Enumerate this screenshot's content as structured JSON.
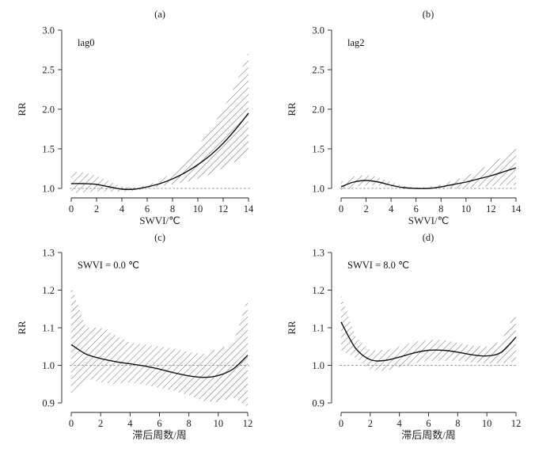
{
  "chart_data": [
    {
      "panel": "(a)",
      "type": "line",
      "annotation": "lag0",
      "xlabel": "SWVI/℃",
      "ylabel": "RR",
      "xlim": [
        0,
        14
      ],
      "ylim": [
        1.0,
        3.0
      ],
      "xticks": [
        "0",
        "2",
        "4",
        "6",
        "8",
        "10",
        "12",
        "14"
      ],
      "yticks": [
        "1.0",
        "1.5",
        "2.0",
        "2.5",
        "3.0"
      ],
      "reference_line": 1.0,
      "series": [
        {
          "x": [
            0,
            1,
            2,
            3,
            4,
            5,
            6,
            7,
            8,
            9,
            10,
            11,
            12,
            13,
            14
          ],
          "y": [
            1.06,
            1.06,
            1.05,
            1.02,
            0.99,
            0.99,
            1.02,
            1.06,
            1.12,
            1.2,
            1.3,
            1.42,
            1.57,
            1.75,
            1.95
          ],
          "lower": [
            0.94,
            0.95,
            0.96,
            0.96,
            0.96,
            0.97,
            1.0,
            1.03,
            1.05,
            1.08,
            1.12,
            1.18,
            1.26,
            1.34,
            1.44
          ],
          "upper": [
            1.21,
            1.2,
            1.16,
            1.09,
            1.02,
            1.01,
            1.04,
            1.1,
            1.2,
            1.34,
            1.53,
            1.75,
            2.0,
            2.32,
            2.72
          ]
        }
      ]
    },
    {
      "panel": "(b)",
      "type": "line",
      "annotation": "lag2",
      "xlabel": "SWVI/℃",
      "ylabel": "RR",
      "xlim": [
        0,
        14
      ],
      "ylim": [
        1.0,
        3.0
      ],
      "xticks": [
        "0",
        "2",
        "4",
        "6",
        "8",
        "10",
        "12",
        "14"
      ],
      "yticks": [
        "1.0",
        "1.5",
        "2.0",
        "2.5",
        "3.0"
      ],
      "reference_line": 1.0,
      "series": [
        {
          "x": [
            0,
            1,
            2,
            3,
            4,
            5,
            6,
            7,
            8,
            9,
            10,
            11,
            12,
            13,
            14
          ],
          "y": [
            1.02,
            1.08,
            1.1,
            1.08,
            1.04,
            1.01,
            1.0,
            1.0,
            1.02,
            1.05,
            1.08,
            1.12,
            1.16,
            1.21,
            1.26
          ],
          "lower": [
            0.96,
            1.02,
            1.04,
            1.04,
            1.02,
            1.0,
            0.99,
            0.99,
            1.0,
            1.0,
            1.01,
            1.02,
            1.03,
            1.04,
            1.04
          ],
          "upper": [
            1.08,
            1.15,
            1.17,
            1.14,
            1.08,
            1.03,
            1.01,
            1.02,
            1.05,
            1.1,
            1.15,
            1.23,
            1.31,
            1.4,
            1.51
          ]
        }
      ]
    },
    {
      "panel": "(c)",
      "type": "line",
      "annotation": "SWVI = 0.0 ℃",
      "xlabel": "滞后周数/周",
      "ylabel": "RR",
      "xlim": [
        0,
        12
      ],
      "ylim": [
        0.9,
        1.3
      ],
      "xticks": [
        "0",
        "2",
        "4",
        "6",
        "8",
        "10",
        "12"
      ],
      "yticks": [
        "0.9",
        "1.0",
        "1.1",
        "1.2",
        "1.3"
      ],
      "reference_line": 1.0,
      "series": [
        {
          "x": [
            0,
            1,
            2,
            3,
            4,
            5,
            6,
            7,
            8,
            9,
            10,
            11,
            12
          ],
          "y": [
            1.055,
            1.03,
            1.018,
            1.01,
            1.004,
            0.998,
            0.99,
            0.98,
            0.972,
            0.968,
            0.973,
            0.99,
            1.027
          ],
          "lower": [
            0.915,
            0.965,
            0.955,
            0.95,
            0.955,
            0.948,
            0.94,
            0.932,
            0.92,
            0.905,
            0.902,
            0.915,
            0.89
          ],
          "upper": [
            1.21,
            1.1,
            1.1,
            1.08,
            1.06,
            1.055,
            1.05,
            1.045,
            1.035,
            1.03,
            1.045,
            1.055,
            1.18
          ]
        }
      ]
    },
    {
      "panel": "(d)",
      "type": "line",
      "annotation": "SWVI = 8.0 ℃",
      "xlabel": "滞后周数/周",
      "ylabel": "RR",
      "xlim": [
        0,
        12
      ],
      "ylim": [
        0.9,
        1.3
      ],
      "xticks": [
        "0",
        "2",
        "4",
        "6",
        "8",
        "10",
        "12"
      ],
      "yticks": [
        "0.9",
        "1.0",
        "1.1",
        "1.2",
        "1.3"
      ],
      "reference_line": 1.0,
      "series": [
        {
          "x": [
            0,
            1,
            2,
            3,
            4,
            5,
            6,
            7,
            8,
            9,
            10,
            11,
            12
          ],
          "y": [
            1.115,
            1.045,
            1.015,
            1.013,
            1.022,
            1.033,
            1.04,
            1.04,
            1.035,
            1.028,
            1.025,
            1.035,
            1.075
          ],
          "lower": [
            1.04,
            1.02,
            0.988,
            0.985,
            0.995,
            1.005,
            1.012,
            1.012,
            1.012,
            1.008,
            1.005,
            1.005,
            1.01
          ],
          "upper": [
            1.185,
            1.075,
            1.04,
            1.04,
            1.05,
            1.062,
            1.068,
            1.068,
            1.06,
            1.052,
            1.05,
            1.065,
            1.145
          ]
        }
      ]
    }
  ]
}
